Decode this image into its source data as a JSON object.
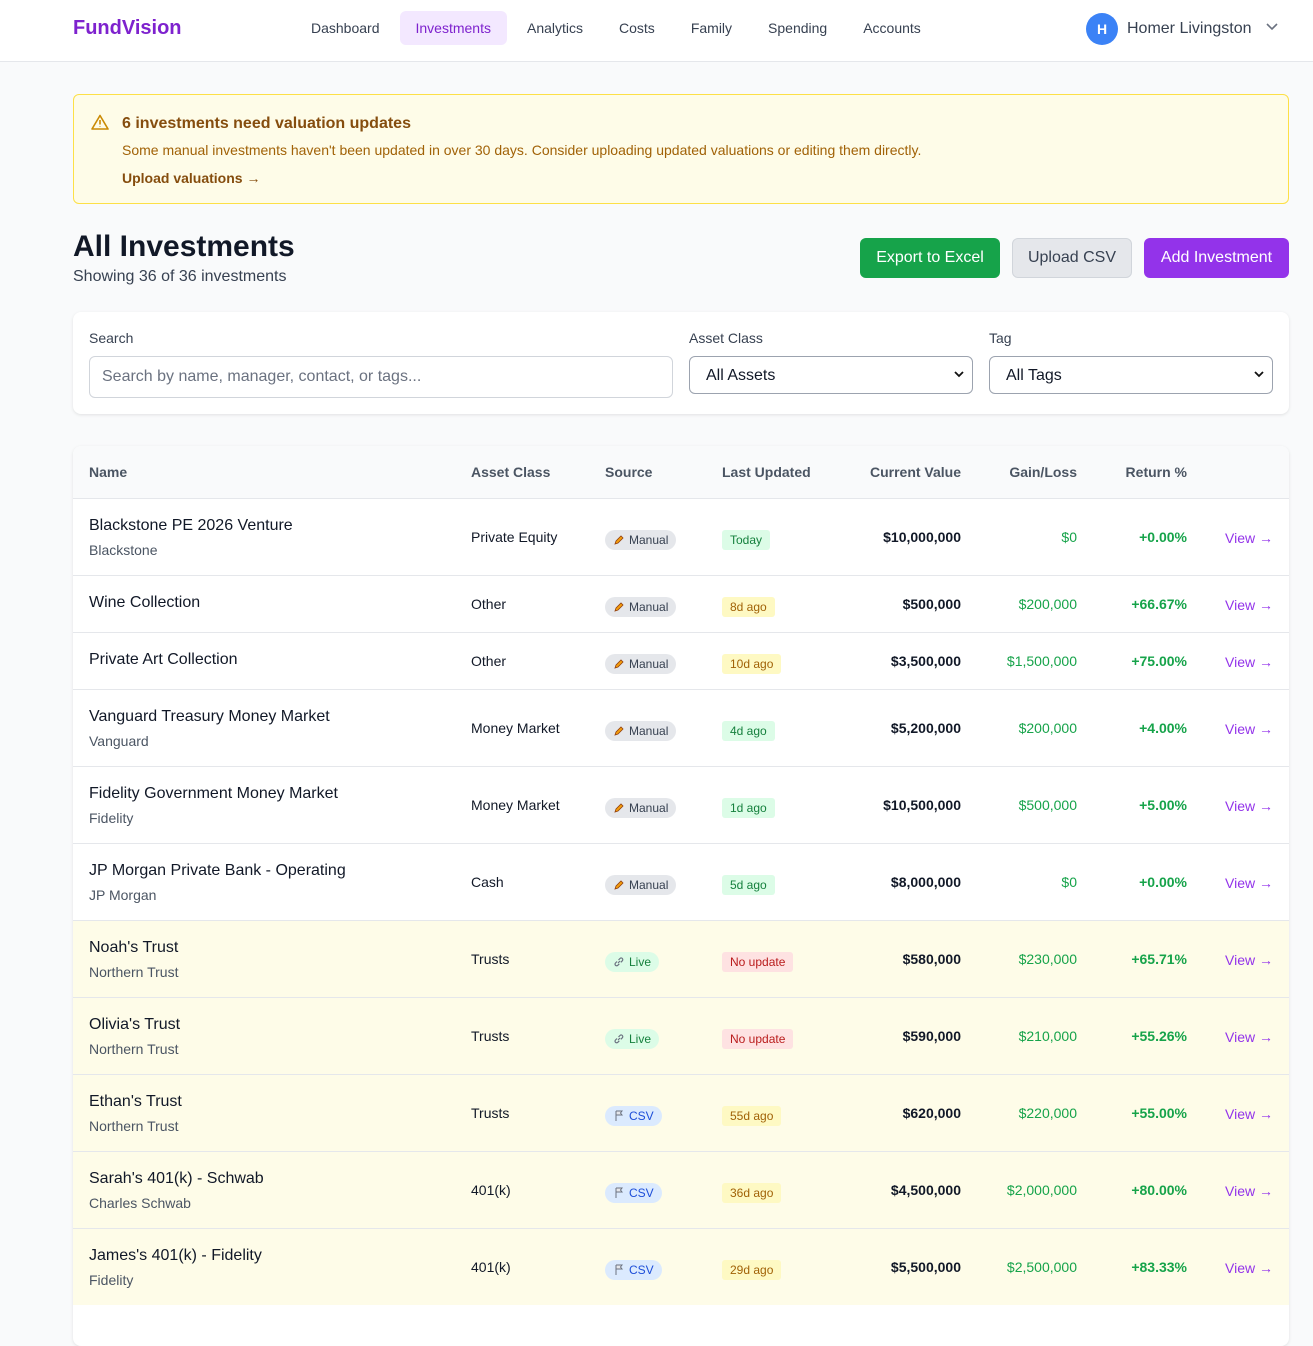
{
  "nav": {
    "brand": "FundVision",
    "links": [
      "Dashboard",
      "Investments",
      "Analytics",
      "Costs",
      "Family",
      "Spending",
      "Accounts"
    ],
    "user_initial": "H",
    "user_name": "Homer Livingston"
  },
  "alert": {
    "title": "6 investments need valuation updates",
    "message": "Some manual investments haven't been updated in over 30 days. Consider uploading updated valuations or editing them directly.",
    "link": "Upload valuations →"
  },
  "header": {
    "title": "All Investments",
    "subtitle": "Showing 36 of 36 investments",
    "buttons": [
      "Export to Excel",
      "Upload CSV",
      "Add Investment"
    ]
  },
  "filters": {
    "search_label": "Search",
    "search_placeholder": "Search by name, manager, contact, or tags...",
    "asset_label": "Asset Class",
    "asset_value": "All Assets",
    "tag_label": "Tag",
    "tag_value": "All Tags"
  },
  "table": {
    "columns": [
      "Name",
      "Asset Class",
      "Source",
      "Last Updated",
      "Current Value",
      "Gain/Loss",
      "Return %"
    ],
    "rows": [
      {
        "name": "Blackstone PE 2026 Venture",
        "manager": "Blackstone",
        "asset_class": "Private Equity",
        "source": "Manual",
        "source_kind": "manual",
        "updated": "Today",
        "tone": "green",
        "value": "$10,000,000",
        "gain": "$0",
        "return": "+0.00%",
        "action": "View →",
        "highlight": false
      },
      {
        "name": "Wine Collection",
        "asset_class": "Other",
        "source": "Manual",
        "source_kind": "manual",
        "updated": "8d ago",
        "tone": "yellow",
        "value": "$500,000",
        "gain": "$200,000",
        "return": "+66.67%",
        "action": "View →",
        "highlight": false
      },
      {
        "name": "Private Art Collection",
        "asset_class": "Other",
        "source": "Manual",
        "source_kind": "manual",
        "updated": "10d ago",
        "tone": "yellow",
        "value": "$3,500,000",
        "gain": "$1,500,000",
        "return": "+75.00%",
        "action": "View →",
        "highlight": false
      },
      {
        "name": "Vanguard Treasury Money Market",
        "manager": "Vanguard",
        "asset_class": "Money Market",
        "source": "Manual",
        "source_kind": "manual",
        "updated": "4d ago",
        "tone": "green",
        "value": "$5,200,000",
        "gain": "$200,000",
        "return": "+4.00%",
        "action": "View →",
        "highlight": false
      },
      {
        "name": "Fidelity Government Money Market",
        "manager": "Fidelity",
        "asset_class": "Money Market",
        "source": "Manual",
        "source_kind": "manual",
        "updated": "1d ago",
        "tone": "green",
        "value": "$10,500,000",
        "gain": "$500,000",
        "return": "+5.00%",
        "action": "View →",
        "highlight": false
      },
      {
        "name": "JP Morgan Private Bank - Operating",
        "manager": "JP Morgan",
        "asset_class": "Cash",
        "source": "Manual",
        "source_kind": "manual",
        "updated": "5d ago",
        "tone": "green",
        "value": "$8,000,000",
        "gain": "$0",
        "return": "+0.00%",
        "action": "View →",
        "highlight": false
      },
      {
        "name": "Noah's Trust",
        "manager": "Northern Trust",
        "asset_class": "Trusts",
        "source": "Live",
        "source_kind": "live",
        "updated": "No update",
        "tone": "red",
        "value": "$580,000",
        "gain": "$230,000",
        "return": "+65.71%",
        "action": "View →",
        "highlight": true
      },
      {
        "name": "Olivia's Trust",
        "manager": "Northern Trust",
        "asset_class": "Trusts",
        "source": "Live",
        "source_kind": "live",
        "updated": "No update",
        "tone": "red",
        "value": "$590,000",
        "gain": "$210,000",
        "return": "+55.26%",
        "action": "View →",
        "highlight": true
      },
      {
        "name": "Ethan's Trust",
        "manager": "Northern Trust",
        "asset_class": "Trusts",
        "source": "CSV",
        "source_kind": "csv",
        "updated": "55d ago",
        "tone": "yellow",
        "value": "$620,000",
        "gain": "$220,000",
        "return": "+55.00%",
        "action": "View →",
        "highlight": true
      },
      {
        "name": "Sarah's 401(k) - Schwab",
        "manager": "Charles Schwab",
        "asset_class": "401(k)",
        "source": "CSV",
        "source_kind": "csv",
        "updated": "36d ago",
        "tone": "yellow",
        "value": "$4,500,000",
        "gain": "$2,000,000",
        "return": "+80.00%",
        "action": "View →",
        "highlight": true
      },
      {
        "name": "James's 401(k) - Fidelity",
        "manager": "Fidelity",
        "asset_class": "401(k)",
        "source": "CSV",
        "source_kind": "csv",
        "updated": "29d ago",
        "tone": "yellow",
        "value": "$5,500,000",
        "gain": "$2,500,000",
        "return": "+83.33%",
        "action": "View →",
        "highlight": true
      }
    ]
  }
}
